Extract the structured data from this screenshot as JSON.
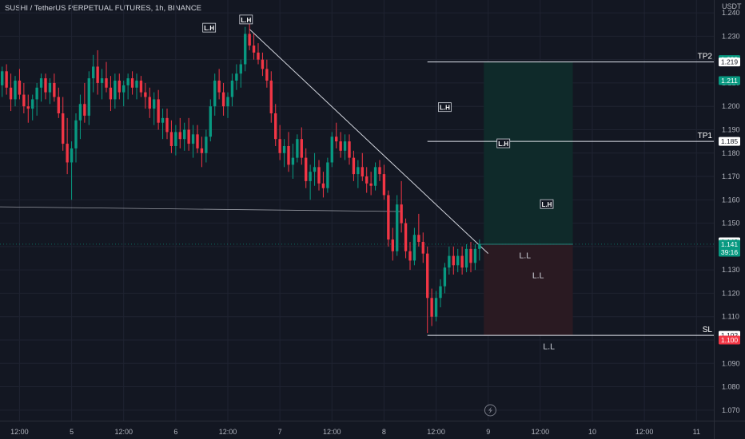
{
  "header": {
    "title": "SUSHI / TetherUS PERPETUAL FUTURES, 1h, BINANCE"
  },
  "price_axis": {
    "unit": "USDT",
    "badges": [
      {
        "label": "1.220",
        "price": 1.22,
        "bg": "#089981",
        "fg": "#ffffff"
      },
      {
        "label": "1.219",
        "price": 1.219,
        "bg": "#ffffff",
        "fg": "#131722"
      },
      {
        "label": "1.211",
        "price": 1.211,
        "bg": "#089981",
        "fg": "#ffffff"
      },
      {
        "label": "1.185",
        "price": 1.185,
        "bg": "#ffffff",
        "fg": "#131722"
      },
      {
        "label": "1.142",
        "price": 1.142,
        "bg": "#ffffff",
        "fg": "#131722"
      },
      {
        "label": "1.141",
        "price": 1.141,
        "bg": "#089981",
        "fg": "#ffffff",
        "sub": "39:16"
      },
      {
        "label": "1.102",
        "price": 1.102,
        "bg": "#ffffff",
        "fg": "#131722"
      },
      {
        "label": "1.100",
        "price": 1.1,
        "bg": "#f23645",
        "fg": "#ffffff"
      }
    ]
  },
  "levels": [
    {
      "label": "TP2",
      "price": 1.219
    },
    {
      "label": "TP1",
      "price": 1.185
    },
    {
      "label": "SL",
      "price": 1.102
    }
  ],
  "annotations": {
    "lh": [
      {
        "text": "L.H",
        "x": 0.2,
        "price": 1.237
      },
      {
        "text": "L.H",
        "x": -8.3,
        "price": 1.2335
      },
      {
        "text": "L.H",
        "x": 46,
        "price": 1.1995
      },
      {
        "text": "L.H",
        "x": 59.5,
        "price": 1.184
      },
      {
        "text": "L.H",
        "x": 69.5,
        "price": 1.158
      }
    ],
    "ll": [
      {
        "text": "L.L",
        "x": 64.5,
        "price": 1.135
      },
      {
        "text": "L.L",
        "x": 67.5,
        "price": 1.1265
      },
      {
        "text": "L.L",
        "x": 70,
        "price": 1.096
      }
    ]
  },
  "colors": {
    "bg": "#131722",
    "up": "#089981",
    "down": "#f23645",
    "grid": "#1f2331",
    "tp_zone": "#0f2a2a",
    "sl_zone": "#2a1a22",
    "line": "#d1d4dc"
  },
  "chart_data": {
    "type": "candlestick",
    "title": "SUSHI / TetherUS PERPETUAL FUTURES, 1h, BINANCE",
    "x_tick_labels": [
      "12:00",
      "5",
      "12:00",
      "6",
      "12:00",
      "7",
      "12:00",
      "8",
      "12:00",
      "9",
      "12:00",
      "10",
      "12:00",
      "11"
    ],
    "x_tick_bars": [
      -52,
      -40,
      -28,
      -16,
      -4,
      8,
      20,
      32,
      44,
      56,
      68,
      80,
      92,
      104
    ],
    "y_ticks": [
      1.07,
      1.08,
      1.09,
      1.1,
      1.11,
      1.12,
      1.13,
      1.14,
      1.15,
      1.16,
      1.17,
      1.18,
      1.19,
      1.2,
      1.21,
      1.22,
      1.23,
      1.24
    ],
    "ylim": [
      1.0655,
      1.2455
    ],
    "xlim": [
      -56.5,
      108
    ],
    "last_price": 1.141,
    "x_unit": "hour offset from 7 00:00",
    "ohlc": [
      [
        -56,
        1.209,
        1.217,
        1.204,
        1.215
      ],
      [
        -55,
        1.215,
        1.218,
        1.205,
        1.208
      ],
      [
        -54,
        1.208,
        1.214,
        1.198,
        1.203
      ],
      [
        -53,
        1.203,
        1.213,
        1.2,
        1.211
      ],
      [
        -52,
        1.211,
        1.216,
        1.203,
        1.205
      ],
      [
        -51,
        1.205,
        1.21,
        1.197,
        1.2
      ],
      [
        -50,
        1.2,
        1.205,
        1.193,
        1.199
      ],
      [
        -49,
        1.199,
        1.205,
        1.194,
        1.203
      ],
      [
        -48,
        1.203,
        1.21,
        1.196,
        1.208
      ],
      [
        -47,
        1.208,
        1.214,
        1.202,
        1.212
      ],
      [
        -46,
        1.212,
        1.214,
        1.203,
        1.206
      ],
      [
        -45,
        1.206,
        1.212,
        1.201,
        1.21
      ],
      [
        -44,
        1.21,
        1.214,
        1.202,
        1.204
      ],
      [
        -43,
        1.204,
        1.208,
        1.195,
        1.197
      ],
      [
        -42,
        1.197,
        1.204,
        1.181,
        1.184
      ],
      [
        -41,
        1.184,
        1.195,
        1.171,
        1.176
      ],
      [
        -40,
        1.176,
        1.185,
        1.16,
        1.182
      ],
      [
        -39,
        1.182,
        1.197,
        1.176,
        1.194
      ],
      [
        -38,
        1.194,
        1.205,
        1.186,
        1.201
      ],
      [
        -37,
        1.201,
        1.21,
        1.193,
        1.196
      ],
      [
        -36,
        1.196,
        1.215,
        1.192,
        1.212
      ],
      [
        -35,
        1.212,
        1.222,
        1.206,
        1.217
      ],
      [
        -34,
        1.217,
        1.224,
        1.205,
        1.21
      ],
      [
        -33,
        1.21,
        1.216,
        1.203,
        1.212
      ],
      [
        -32,
        1.212,
        1.219,
        1.206,
        1.208
      ],
      [
        -31,
        1.208,
        1.213,
        1.198,
        1.203
      ],
      [
        -30,
        1.203,
        1.214,
        1.199,
        1.211
      ],
      [
        -29,
        1.211,
        1.214,
        1.203,
        1.206
      ],
      [
        -28,
        1.206,
        1.211,
        1.2,
        1.209
      ],
      [
        -27,
        1.209,
        1.214,
        1.203,
        1.212
      ],
      [
        -26,
        1.212,
        1.215,
        1.205,
        1.208
      ],
      [
        -25,
        1.208,
        1.214,
        1.203,
        1.211
      ],
      [
        -24,
        1.211,
        1.213,
        1.204,
        1.206
      ],
      [
        -23,
        1.206,
        1.21,
        1.199,
        1.204
      ],
      [
        -22,
        1.204,
        1.208,
        1.195,
        1.199
      ],
      [
        -21,
        1.199,
        1.206,
        1.192,
        1.203
      ],
      [
        -20,
        1.203,
        1.207,
        1.19,
        1.193
      ],
      [
        -19,
        1.193,
        1.199,
        1.186,
        1.195
      ],
      [
        -18,
        1.195,
        1.199,
        1.186,
        1.189
      ],
      [
        -17,
        1.189,
        1.194,
        1.18,
        1.183
      ],
      [
        -16,
        1.183,
        1.192,
        1.179,
        1.189
      ],
      [
        -15,
        1.189,
        1.195,
        1.182,
        1.186
      ],
      [
        -14,
        1.186,
        1.193,
        1.181,
        1.19
      ],
      [
        -13,
        1.19,
        1.195,
        1.181,
        1.184
      ],
      [
        -12,
        1.184,
        1.192,
        1.178,
        1.188
      ],
      [
        -11,
        1.188,
        1.192,
        1.18,
        1.182
      ],
      [
        -10,
        1.182,
        1.187,
        1.174,
        1.18
      ],
      [
        -9,
        1.18,
        1.19,
        1.176,
        1.187
      ],
      [
        -8,
        1.187,
        1.203,
        1.185,
        1.2
      ],
      [
        -7,
        1.2,
        1.214,
        1.196,
        1.211
      ],
      [
        -6,
        1.211,
        1.216,
        1.203,
        1.206
      ],
      [
        -5,
        1.206,
        1.21,
        1.196,
        1.2
      ],
      [
        -4,
        1.2,
        1.206,
        1.195,
        1.204
      ],
      [
        -3,
        1.204,
        1.214,
        1.2,
        1.211
      ],
      [
        -2,
        1.211,
        1.218,
        1.207,
        1.214
      ],
      [
        -1,
        1.214,
        1.22,
        1.208,
        1.218
      ],
      [
        0,
        1.218,
        1.234,
        1.215,
        1.231
      ],
      [
        1,
        1.231,
        1.236,
        1.224,
        1.226
      ],
      [
        2,
        1.226,
        1.231,
        1.22,
        1.223
      ],
      [
        3,
        1.223,
        1.227,
        1.218,
        1.22
      ],
      [
        4,
        1.22,
        1.223,
        1.213,
        1.216
      ],
      [
        5,
        1.216,
        1.22,
        1.208,
        1.211
      ],
      [
        6,
        1.211,
        1.215,
        1.193,
        1.197
      ],
      [
        7,
        1.197,
        1.201,
        1.183,
        1.186
      ],
      [
        8,
        1.186,
        1.192,
        1.177,
        1.18
      ],
      [
        9,
        1.18,
        1.186,
        1.174,
        1.183
      ],
      [
        10,
        1.183,
        1.189,
        1.172,
        1.175
      ],
      [
        11,
        1.175,
        1.184,
        1.169,
        1.178
      ],
      [
        12,
        1.178,
        1.188,
        1.176,
        1.186
      ],
      [
        13,
        1.186,
        1.191,
        1.175,
        1.178
      ],
      [
        14,
        1.178,
        1.182,
        1.165,
        1.168
      ],
      [
        15,
        1.168,
        1.175,
        1.16,
        1.172
      ],
      [
        16,
        1.172,
        1.18,
        1.166,
        1.174
      ],
      [
        17,
        1.174,
        1.177,
        1.164,
        1.167
      ],
      [
        18,
        1.167,
        1.172,
        1.161,
        1.165
      ],
      [
        19,
        1.165,
        1.178,
        1.163,
        1.176
      ],
      [
        20,
        1.176,
        1.189,
        1.174,
        1.187
      ],
      [
        21,
        1.187,
        1.193,
        1.182,
        1.185
      ],
      [
        22,
        1.185,
        1.189,
        1.178,
        1.181
      ],
      [
        23,
        1.181,
        1.188,
        1.177,
        1.185
      ],
      [
        24,
        1.185,
        1.188,
        1.175,
        1.178
      ],
      [
        25,
        1.178,
        1.181,
        1.168,
        1.171
      ],
      [
        26,
        1.171,
        1.177,
        1.165,
        1.174
      ],
      [
        27,
        1.174,
        1.18,
        1.168,
        1.17
      ],
      [
        28,
        1.17,
        1.174,
        1.163,
        1.167
      ],
      [
        29,
        1.167,
        1.172,
        1.162,
        1.166
      ],
      [
        30,
        1.166,
        1.176,
        1.164,
        1.174
      ],
      [
        31,
        1.174,
        1.177,
        1.168,
        1.171
      ],
      [
        32,
        1.171,
        1.175,
        1.16,
        1.162
      ],
      [
        33,
        1.162,
        1.164,
        1.14,
        1.143
      ],
      [
        34,
        1.143,
        1.148,
        1.134,
        1.138
      ],
      [
        35,
        1.138,
        1.162,
        1.136,
        1.158
      ],
      [
        36,
        1.158,
        1.168,
        1.146,
        1.15
      ],
      [
        37,
        1.15,
        1.152,
        1.135,
        1.138
      ],
      [
        38,
        1.138,
        1.142,
        1.13,
        1.134
      ],
      [
        39,
        1.134,
        1.148,
        1.132,
        1.145
      ],
      [
        40,
        1.145,
        1.154,
        1.14,
        1.142
      ],
      [
        41,
        1.142,
        1.146,
        1.133,
        1.137
      ],
      [
        42,
        1.137,
        1.14,
        1.103,
        1.118
      ],
      [
        43,
        1.118,
        1.122,
        1.106,
        1.11
      ],
      [
        44,
        1.11,
        1.121,
        1.108,
        1.118
      ],
      [
        45,
        1.118,
        1.126,
        1.114,
        1.123
      ],
      [
        46,
        1.123,
        1.133,
        1.12,
        1.131
      ],
      [
        47,
        1.131,
        1.14,
        1.128,
        1.136
      ],
      [
        48,
        1.136,
        1.14,
        1.128,
        1.132
      ],
      [
        49,
        1.132,
        1.139,
        1.129,
        1.136
      ],
      [
        50,
        1.136,
        1.14,
        1.128,
        1.131
      ],
      [
        51,
        1.131,
        1.141,
        1.129,
        1.139
      ],
      [
        52,
        1.139,
        1.142,
        1.129,
        1.133
      ],
      [
        53,
        1.133,
        1.141,
        1.13,
        1.139
      ],
      [
        54,
        1.139,
        1.143,
        1.134,
        1.141
      ]
    ],
    "drawings": {
      "trendline": [
        [
          1,
          1.233
        ],
        [
          56,
          1.137
        ]
      ],
      "support_line": [
        [
          -57,
          1.157
        ],
        [
          36,
          1.155
        ]
      ],
      "entry_line": [
        [
          54,
          1.141
        ],
        [
          75.5,
          1.141
        ]
      ],
      "tp_zone": {
        "x": [
          55,
          75.5
        ],
        "y": [
          1.141,
          1.219
        ]
      },
      "sl_zone": {
        "x": [
          55,
          75.5
        ],
        "y": [
          1.102,
          1.141
        ]
      },
      "level_lines_x_start": 42
    }
  }
}
